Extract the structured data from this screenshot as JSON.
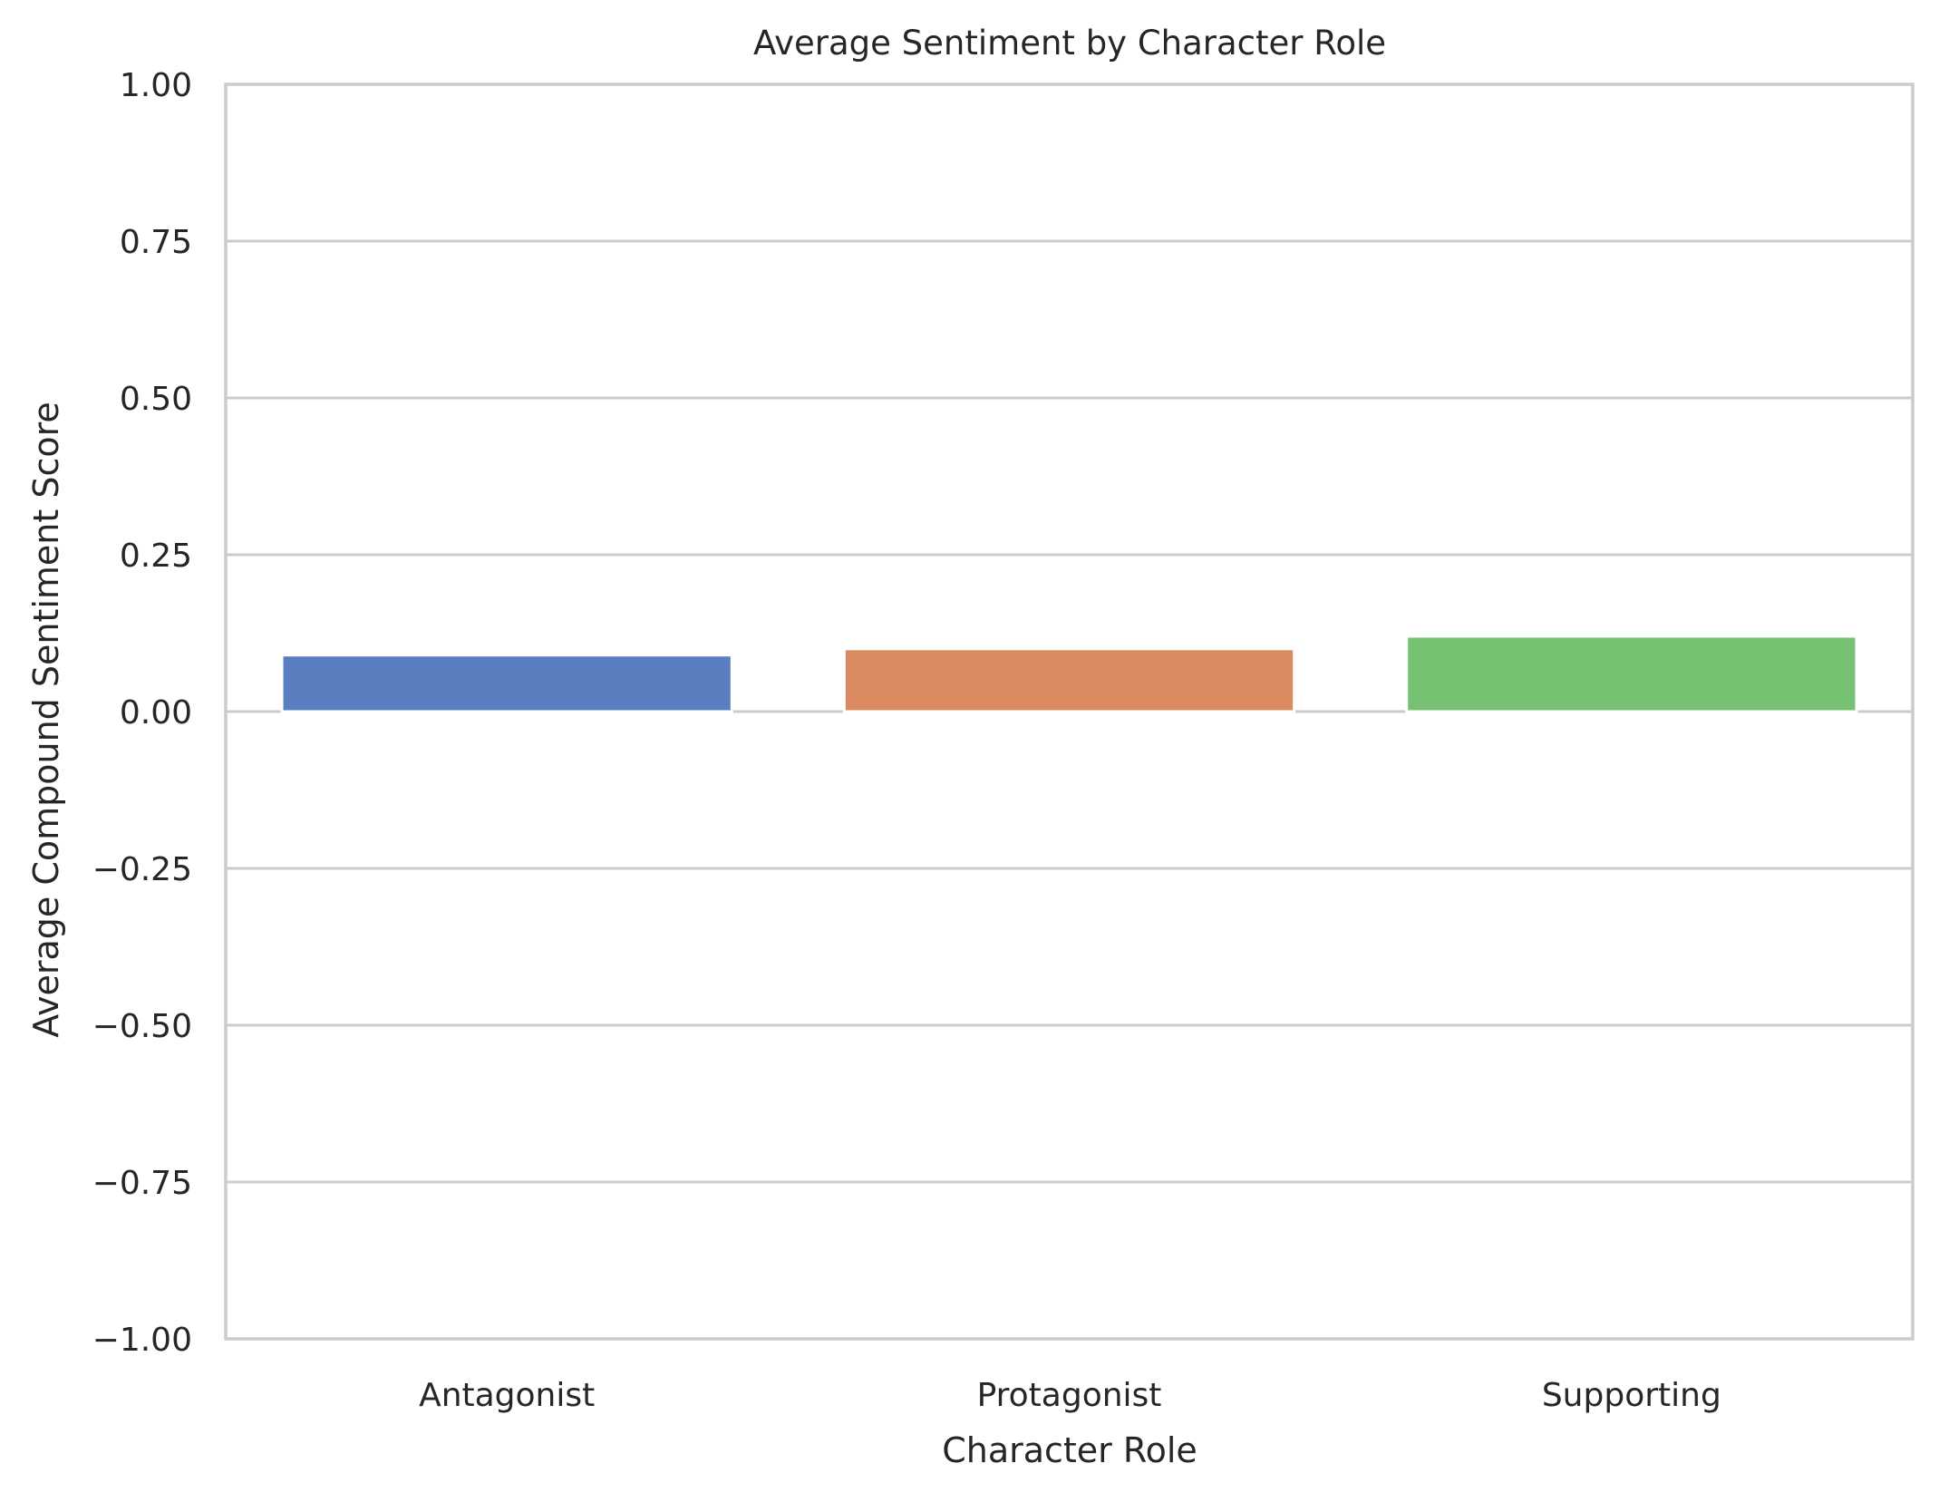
{
  "chart_data": {
    "type": "bar",
    "title": "Average Sentiment by Character Role",
    "xlabel": "Character Role",
    "ylabel": "Average Compound Sentiment Score",
    "categories": [
      "Antagonist",
      "Protagonist",
      "Supporting"
    ],
    "values": [
      0.09,
      0.1,
      0.12
    ],
    "colors": [
      "#5a7fc0",
      "#d98b5f",
      "#76c172"
    ],
    "ylim": [
      -1.0,
      1.0
    ],
    "yticks": [
      -1.0,
      -0.75,
      -0.5,
      -0.25,
      0.0,
      0.25,
      0.5,
      0.75,
      1.0
    ],
    "ytick_labels": [
      "−1.00",
      "−0.75",
      "−0.50",
      "−0.25",
      "0.00",
      "0.25",
      "0.50",
      "0.75",
      "1.00"
    ],
    "grid": true,
    "grid_color": "#cccccc",
    "axes_color": "#cccccc"
  }
}
